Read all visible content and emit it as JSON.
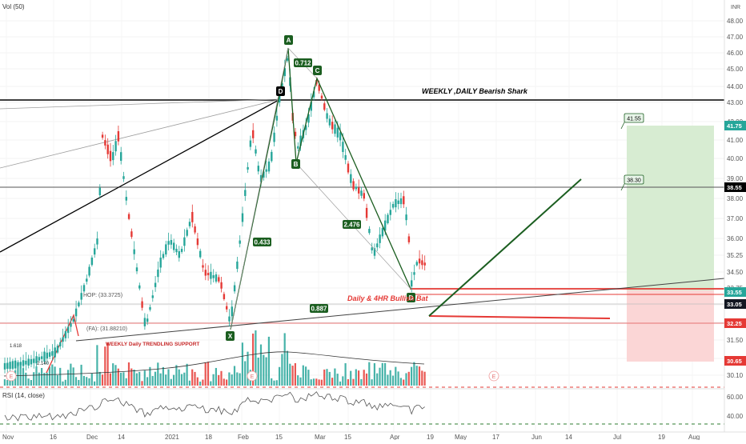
{
  "header": {
    "vol_label": "Vol (50)",
    "currency": "INR"
  },
  "rsi": {
    "label": "RSI (14, close)",
    "ticks": [
      "60.00",
      "40.00"
    ]
  },
  "price_axis": {
    "ticks": [
      "48.00",
      "47.00",
      "46.00",
      "45.00",
      "44.00",
      "43.00",
      "42.00",
      "41.00",
      "40.00",
      "39.00",
      "38.00",
      "37.00",
      "36.00",
      "35.25",
      "34.50",
      "33.75",
      "33.05",
      "32.25",
      "31.50",
      "30.75",
      "30.10"
    ],
    "badges": [
      {
        "text": "41.75",
        "color": "#26a69a"
      },
      {
        "text": "38.55",
        "color": "#000000"
      },
      {
        "text": "33.55",
        "color": "#26a69a"
      },
      {
        "text": "33.05",
        "color": "#131722"
      },
      {
        "text": "32.25",
        "color": "#e53935"
      },
      {
        "text": "30.65",
        "color": "#e53935"
      }
    ]
  },
  "time_axis": [
    "Nov",
    "16",
    "Dec",
    "14",
    "2021",
    "18",
    "Feb",
    "15",
    "Mar",
    "15",
    "Apr",
    "19",
    "May",
    "17",
    "Jun",
    "14",
    "Jul",
    "19",
    "Aug"
  ],
  "annotations": {
    "shark_title": "WEEKLY ,DAILY Bearish Shark",
    "bullish_bat": "Daily & 4HR Bullish Bat",
    "support": "WEEKLY  Daily TRENDLING SUPPORT",
    "hop": "HOP: (33.3725)",
    "fa": "(FA): (31.88210)",
    "fib_1": "1.618",
    "fib_2": "2.140",
    "target_high": "41.55",
    "target_mid": "38.30",
    "earnings_marks": [
      "E",
      "E",
      "E"
    ]
  },
  "pattern_points": [
    {
      "label": "X",
      "date": "2021-01-20",
      "price": 32.4
    },
    {
      "label": "D",
      "date": "2021-02-12",
      "price": 43.2
    },
    {
      "label": "A",
      "date": "2021-02-17",
      "price": 46.7
    },
    {
      "label": "B",
      "date": "2021-02-22",
      "price": 40.1
    },
    {
      "label": "C",
      "date": "2021-03-02",
      "price": 44.7
    },
    {
      "label": "D",
      "date": "2021-04-14",
      "price": 33.6
    }
  ],
  "pattern_ratios": [
    "0.712",
    "0.433",
    "2.476",
    "0.887"
  ],
  "colors": {
    "up": "#26a69a",
    "down": "#e53935",
    "pattern": "#1b5e20",
    "target_zone": "#c8e6c9",
    "stop_zone": "#ffcdd2"
  },
  "chart_data": {
    "type": "candlestick",
    "x_start": "2020-11-01",
    "x_end": "2021-08-31",
    "ylim": [
      30.0,
      48.5
    ],
    "series_close": [
      [
        "2020-11-02",
        30.8
      ],
      [
        "2020-11-09",
        30.5
      ],
      [
        "2020-11-16",
        31.2
      ],
      [
        "2020-11-23",
        33.1
      ],
      [
        "2020-11-30",
        35.0
      ],
      [
        "2020-12-07",
        41.2
      ],
      [
        "2020-12-14",
        39.0
      ],
      [
        "2020-12-21",
        36.2
      ],
      [
        "2020-12-28",
        34.0
      ],
      [
        "2021-01-04",
        35.4
      ],
      [
        "2021-01-11",
        36.6
      ],
      [
        "2021-01-18",
        34.2
      ],
      [
        "2021-01-25",
        37.6
      ],
      [
        "2021-02-01",
        40.4
      ],
      [
        "2021-02-08",
        42.2
      ],
      [
        "2021-02-15",
        45.1
      ],
      [
        "2021-02-22",
        41.0
      ],
      [
        "2021-03-01",
        43.9
      ],
      [
        "2021-03-08",
        42.2
      ],
      [
        "2021-03-15",
        40.2
      ],
      [
        "2021-03-22",
        37.6
      ],
      [
        "2021-03-29",
        37.2
      ],
      [
        "2021-04-05",
        38.0
      ],
      [
        "2021-04-12",
        34.2
      ],
      [
        "2021-04-19",
        33.4
      ]
    ],
    "horizontal_levels": [
      43.05,
      38.55,
      33.55,
      32.25
    ],
    "long_position": {
      "entry": 33.55,
      "target": 41.75,
      "stop": 30.65
    },
    "date_ticks": [
      "Nov",
      "16",
      "Dec",
      "14",
      "2021",
      "18",
      "Feb",
      "15",
      "Mar",
      "15",
      "Apr",
      "19",
      "May",
      "17",
      "Jun",
      "14",
      "Jul",
      "19",
      "Aug"
    ]
  }
}
